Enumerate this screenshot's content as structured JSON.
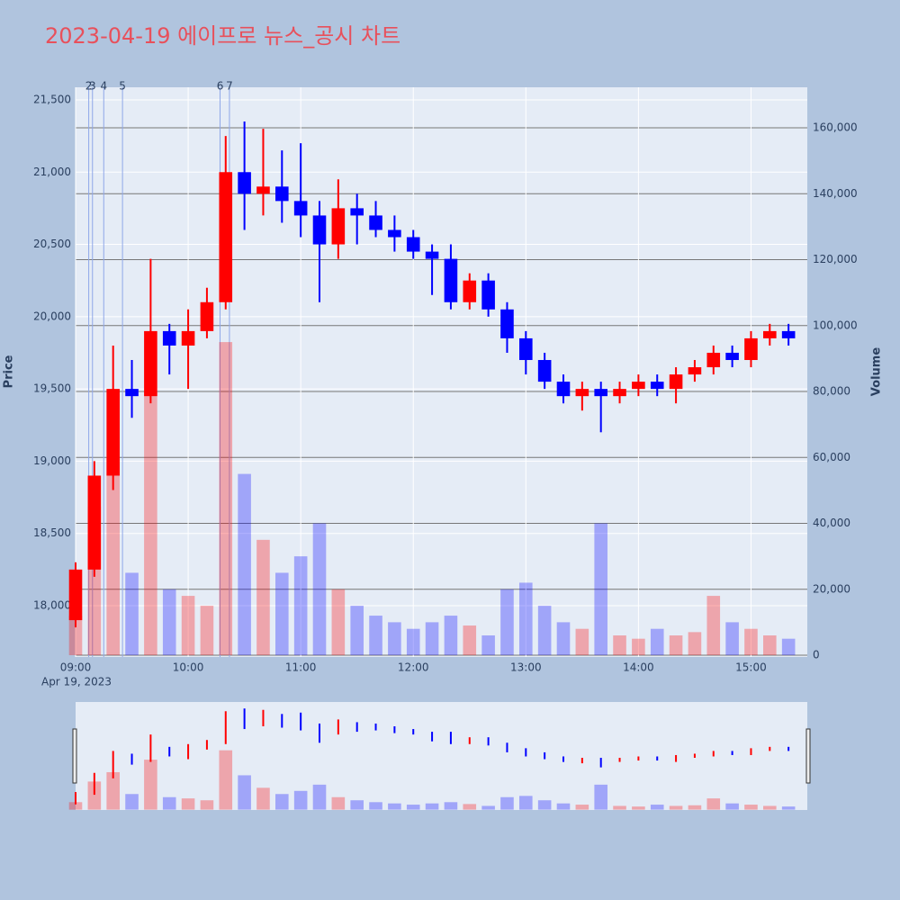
{
  "chart_data": {
    "type": "candlestick",
    "title": "2023-04-19 에이프로 뉴스_공시 차트",
    "ylabel": "Price",
    "y2label": "Volume",
    "x_sublabel": "Apr 19, 2023",
    "up_color": "#ff0000",
    "down_color": "#0000ff",
    "x": [
      "09:00",
      "09:10",
      "09:20",
      "09:30",
      "09:40",
      "09:50",
      "10:00",
      "10:10",
      "10:20",
      "10:30",
      "10:40",
      "10:50",
      "11:00",
      "11:10",
      "11:20",
      "11:30",
      "11:40",
      "11:50",
      "12:00",
      "12:10",
      "12:20",
      "12:30",
      "12:40",
      "12:50",
      "13:00",
      "13:10",
      "13:20",
      "13:30",
      "13:40",
      "13:50",
      "14:00",
      "14:10",
      "14:20",
      "14:30",
      "14:40",
      "14:50",
      "15:00",
      "15:10",
      "15:20"
    ],
    "open": [
      17900,
      18250,
      18900,
      19500,
      19450,
      19900,
      19800,
      19900,
      20100,
      21000,
      20850,
      20900,
      20800,
      20700,
      20500,
      20750,
      20700,
      20600,
      20550,
      20450,
      20400,
      20100,
      20250,
      20050,
      19850,
      19700,
      19550,
      19450,
      19500,
      19450,
      19500,
      19550,
      19500,
      19600,
      19650,
      19750,
      19700,
      19850,
      19900
    ],
    "high": [
      18300,
      19000,
      19800,
      19700,
      20400,
      19950,
      20050,
      20200,
      21250,
      21350,
      21300,
      21150,
      21200,
      20800,
      20950,
      20850,
      20800,
      20700,
      20600,
      20500,
      20500,
      20300,
      20300,
      20100,
      19900,
      19750,
      19600,
      19550,
      19550,
      19550,
      19600,
      19600,
      19650,
      19700,
      19800,
      19800,
      19900,
      19950,
      19950
    ],
    "low": [
      17850,
      18200,
      18800,
      19300,
      19400,
      19600,
      19500,
      19850,
      20050,
      20600,
      20700,
      20650,
      20550,
      20100,
      20400,
      20500,
      20550,
      20450,
      20400,
      20150,
      20050,
      20050,
      20000,
      19750,
      19600,
      19500,
      19400,
      19350,
      19200,
      19400,
      19450,
      19450,
      19400,
      19550,
      19600,
      19650,
      19650,
      19800,
      19800
    ],
    "close": [
      18250,
      18900,
      19500,
      19450,
      19900,
      19800,
      19900,
      20100,
      21000,
      20850,
      20900,
      20800,
      20700,
      20500,
      20750,
      20700,
      20600,
      20550,
      20450,
      20400,
      20100,
      20250,
      20050,
      19850,
      19700,
      19550,
      19450,
      19500,
      19450,
      19500,
      19550,
      19500,
      19600,
      19650,
      19750,
      19700,
      19850,
      19900,
      19850
    ],
    "volume": [
      12000,
      45000,
      60000,
      25000,
      80000,
      20000,
      18000,
      15000,
      95000,
      55000,
      35000,
      25000,
      30000,
      40000,
      20000,
      15000,
      12000,
      10000,
      8000,
      10000,
      12000,
      9000,
      6000,
      20000,
      22000,
      15000,
      10000,
      8000,
      40000,
      6000,
      5000,
      8000,
      6000,
      7000,
      18000,
      10000,
      8000,
      6000,
      5000
    ],
    "xlim": [
      "09:00",
      "15:30"
    ],
    "xticks": [
      "09:00",
      "10:00",
      "11:00",
      "12:00",
      "13:00",
      "14:00",
      "15:00"
    ],
    "ylim": [
      17645,
      21587
    ],
    "yticks": [
      {
        "value": 18000,
        "label": "18,000"
      },
      {
        "value": 18500,
        "label": "18,500"
      },
      {
        "value": 19000,
        "label": "19,000"
      },
      {
        "value": 19500,
        "label": "19,500"
      },
      {
        "value": 20000,
        "label": "20,000"
      },
      {
        "value": 20500,
        "label": "20,500"
      },
      {
        "value": 21000,
        "label": "21,000"
      },
      {
        "value": 21500,
        "label": "21,500"
      }
    ],
    "y2lim": [
      -546,
      172300
    ],
    "y2ticks": [
      0,
      {
        "value": 20000,
        "label": "20,000"
      },
      {
        "value": 40000,
        "label": "40,000"
      },
      {
        "value": 60000,
        "label": "60,000"
      },
      {
        "value": 80000,
        "label": "80,000"
      },
      {
        "value": 100000,
        "label": "100,000"
      },
      {
        "value": 120000,
        "label": "120,000"
      },
      {
        "value": 140000,
        "label": "140,000"
      },
      {
        "value": 160000,
        "label": "160,000"
      }
    ],
    "annotations": [
      {
        "x": "09:07",
        "label": "2"
      },
      {
        "x": "09:09",
        "label": "3"
      },
      {
        "x": "09:15",
        "label": "4"
      },
      {
        "x": "09:25",
        "label": "5"
      },
      {
        "x": "10:17",
        "label": "6"
      },
      {
        "x": "10:22",
        "label": "7"
      }
    ]
  }
}
